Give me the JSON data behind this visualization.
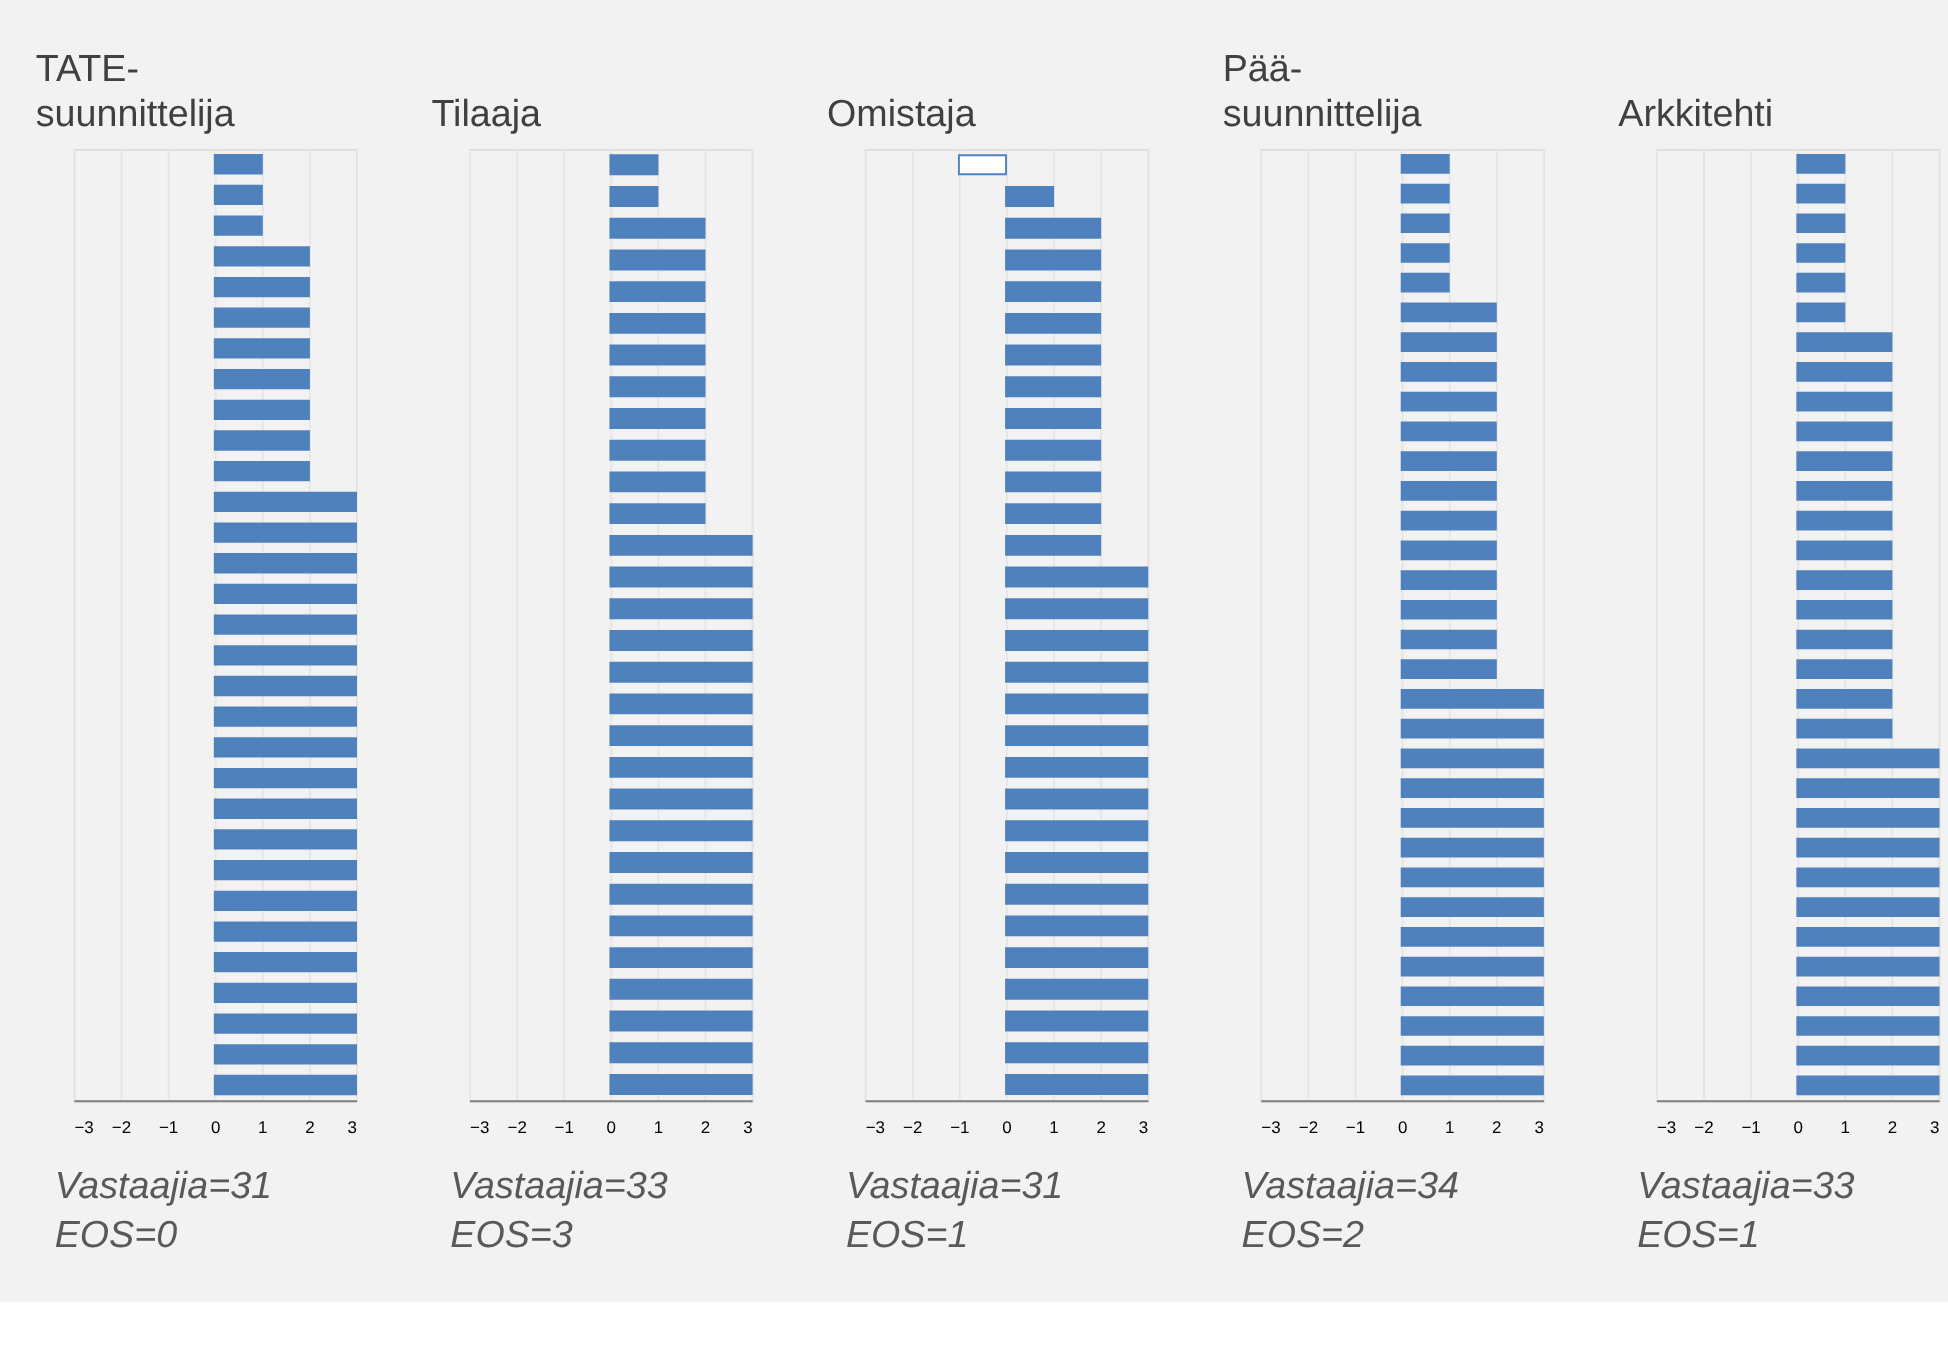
{
  "chart_data": [
    {
      "type": "bar",
      "orientation": "horizontal",
      "title": "TATE-\nsuunnittelija",
      "categories": [
        null,
        null,
        null,
        null,
        null,
        null,
        null,
        null,
        null,
        null,
        null,
        null,
        null,
        null,
        null,
        null,
        null,
        null,
        null,
        null,
        null,
        null,
        null,
        null,
        null,
        null,
        null,
        null,
        null,
        null,
        null
      ],
      "values": [
        1,
        1,
        1,
        2,
        2,
        2,
        2,
        2,
        2,
        2,
        2,
        3,
        3,
        3,
        3,
        3,
        3,
        3,
        3,
        3,
        3,
        3,
        3,
        3,
        3,
        3,
        3,
        3,
        3,
        3,
        3
      ],
      "color": "#4f81bd",
      "xlim": [
        -3,
        3
      ],
      "xticks": [
        -3,
        -2,
        -1,
        0,
        1,
        2,
        3
      ],
      "grid": "x",
      "tick_labels": "x",
      "annotations": [
        "Vastaajia=31",
        "EOS=0"
      ]
    },
    {
      "type": "bar",
      "orientation": "horizontal",
      "title": "Tilaaja",
      "categories": [
        null,
        null,
        null,
        null,
        null,
        null,
        null,
        null,
        null,
        null,
        null,
        null,
        null,
        null,
        null,
        null,
        null,
        null,
        null,
        null,
        null,
        null,
        null,
        null,
        null,
        null,
        null,
        null,
        null,
        null
      ],
      "values": [
        1,
        1,
        2,
        2,
        2,
        2,
        2,
        2,
        2,
        2,
        2,
        2,
        3,
        3,
        3,
        3,
        3,
        3,
        3,
        3,
        3,
        3,
        3,
        3,
        3,
        3,
        3,
        3,
        3,
        3
      ],
      "color": "#4f81bd",
      "xlim": [
        -3,
        3
      ],
      "xticks": [
        -3,
        -2,
        -1,
        0,
        1,
        2,
        3
      ],
      "grid": "x",
      "tick_labels": "x",
      "annotations": [
        "Vastaajia=33",
        "EOS=3"
      ]
    },
    {
      "type": "bar",
      "orientation": "horizontal",
      "title": "Omistaja",
      "categories": [
        null,
        null,
        null,
        null,
        null,
        null,
        null,
        null,
        null,
        null,
        null,
        null,
        null,
        null,
        null,
        null,
        null,
        null,
        null,
        null,
        null,
        null,
        null,
        null,
        null,
        null,
        null,
        null,
        null,
        null
      ],
      "values": [
        -1,
        1,
        2,
        2,
        2,
        2,
        2,
        2,
        2,
        2,
        2,
        2,
        2,
        3,
        3,
        3,
        3,
        3,
        3,
        3,
        3,
        3,
        3,
        3,
        3,
        3,
        3,
        3,
        3,
        3
      ],
      "colors": [
        "#ffffff",
        "#4f81bd",
        "#4f81bd",
        "#4f81bd",
        "#4f81bd",
        "#4f81bd",
        "#4f81bd",
        "#4f81bd",
        "#4f81bd",
        "#4f81bd",
        "#4f81bd",
        "#4f81bd",
        "#4f81bd",
        "#4f81bd",
        "#4f81bd",
        "#4f81bd",
        "#4f81bd",
        "#4f81bd",
        "#4f81bd",
        "#4f81bd",
        "#4f81bd",
        "#4f81bd",
        "#4f81bd",
        "#4f81bd",
        "#4f81bd",
        "#4f81bd",
        "#4f81bd",
        "#4f81bd",
        "#4f81bd",
        "#4f81bd"
      ],
      "color": "#4f81bd",
      "xlim": [
        -3,
        3
      ],
      "xticks": [
        -3,
        -2,
        -1,
        0,
        1,
        2,
        3
      ],
      "grid": "x",
      "tick_labels": "x",
      "annotations": [
        "Vastaajia=31",
        "EOS=1"
      ]
    },
    {
      "type": "bar",
      "orientation": "horizontal",
      "title": "Pää-\nsuunnittelija",
      "categories": [
        null,
        null,
        null,
        null,
        null,
        null,
        null,
        null,
        null,
        null,
        null,
        null,
        null,
        null,
        null,
        null,
        null,
        null,
        null,
        null,
        null,
        null,
        null,
        null,
        null,
        null,
        null,
        null,
        null,
        null,
        null,
        null
      ],
      "values": [
        1,
        1,
        1,
        1,
        1,
        2,
        2,
        2,
        2,
        2,
        2,
        2,
        2,
        2,
        2,
        2,
        2,
        2,
        3,
        3,
        3,
        3,
        3,
        3,
        3,
        3,
        3,
        3,
        3,
        3,
        3,
        3
      ],
      "color": "#4f81bd",
      "xlim": [
        -3,
        3
      ],
      "xticks": [
        -3,
        -2,
        -1,
        0,
        1,
        2,
        3
      ],
      "grid": "x",
      "tick_labels": "x",
      "annotations": [
        "Vastaajia=34",
        "EOS=2"
      ]
    },
    {
      "type": "bar",
      "orientation": "horizontal",
      "title": "Arkkitehti",
      "categories": [
        null,
        null,
        null,
        null,
        null,
        null,
        null,
        null,
        null,
        null,
        null,
        null,
        null,
        null,
        null,
        null,
        null,
        null,
        null,
        null,
        null,
        null,
        null,
        null,
        null,
        null,
        null,
        null,
        null,
        null,
        null,
        null
      ],
      "values": [
        1,
        1,
        1,
        1,
        1,
        1,
        2,
        2,
        2,
        2,
        2,
        2,
        2,
        2,
        2,
        2,
        2,
        2,
        2,
        2,
        3,
        3,
        3,
        3,
        3,
        3,
        3,
        3,
        3,
        3,
        3,
        3
      ],
      "color": "#4f81bd",
      "xlim": [
        -3,
        3
      ],
      "xticks": [
        -3,
        -2,
        -1,
        0,
        1,
        2,
        3
      ],
      "grid": "x",
      "tick_labels": "x",
      "annotations": [
        "Vastaajia=33",
        "EOS=1"
      ]
    }
  ]
}
